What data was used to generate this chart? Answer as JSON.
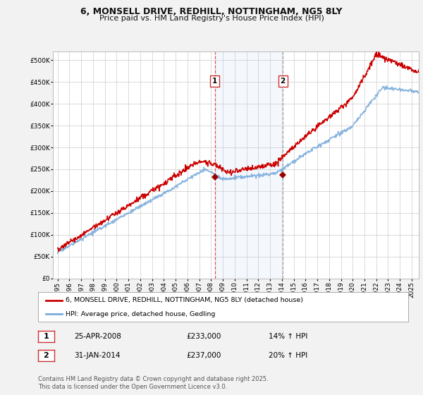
{
  "title_line1": "6, MONSELL DRIVE, REDHILL, NOTTINGHAM, NG5 8LY",
  "title_line2": "Price paid vs. HM Land Registry's House Price Index (HPI)",
  "ylim": [
    0,
    520000
  ],
  "yticks": [
    0,
    50000,
    100000,
    150000,
    200000,
    250000,
    300000,
    350000,
    400000,
    450000,
    500000
  ],
  "ytick_labels": [
    "£0",
    "£50K",
    "£100K",
    "£150K",
    "£200K",
    "£250K",
    "£300K",
    "£350K",
    "£400K",
    "£450K",
    "£500K"
  ],
  "xlim_start": 1994.6,
  "xlim_end": 2025.6,
  "xticks": [
    1995,
    1996,
    1997,
    1998,
    1999,
    2000,
    2001,
    2002,
    2003,
    2004,
    2005,
    2006,
    2007,
    2008,
    2009,
    2010,
    2011,
    2012,
    2013,
    2014,
    2015,
    2016,
    2017,
    2018,
    2019,
    2020,
    2021,
    2022,
    2023,
    2024,
    2025
  ],
  "house_color": "#cc0000",
  "hpi_color": "#7aacdc",
  "purchase_marker_color": "#990000",
  "purchase1_x": 2008.32,
  "purchase1_y": 233000,
  "purchase2_x": 2014.08,
  "purchase2_y": 237000,
  "shade_start": 2008.32,
  "shade_end": 2014.08,
  "vline1_x": 2008.32,
  "vline2_x": 2014.08,
  "legend_house_label": "6, MONSELL DRIVE, REDHILL, NOTTINGHAM, NG5 8LY (detached house)",
  "legend_hpi_label": "HPI: Average price, detached house, Gedling",
  "table_row1": [
    "1",
    "25-APR-2008",
    "£233,000",
    "14% ↑ HPI"
  ],
  "table_row2": [
    "2",
    "31-JAN-2014",
    "£237,000",
    "20% ↑ HPI"
  ],
  "footnote": "Contains HM Land Registry data © Crown copyright and database right 2025.\nThis data is licensed under the Open Government Licence v3.0.",
  "background_color": "#f2f2f2",
  "plot_bg_color": "#ffffff",
  "grid_color": "#cccccc"
}
